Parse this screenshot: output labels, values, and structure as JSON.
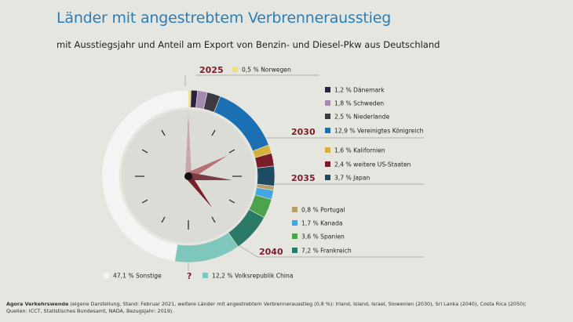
{
  "title": "Länder mit angestrebtem Verbrennerausstieg",
  "subtitle": "mit Ausstiegsjahr und Anteil am Export von Benzin- und Diesel-Pkw aus Deutschland",
  "footer": {
    "source_bold": "Agora Verkehrswende",
    "line1": " (eigene Darstellung, Stand: Februar 2021, weitere Länder mit angestrebtem Verbrennerausstieg (0,8 %): Irland, Island, Israel, Slowenien (2030), Sri Lanka (2040), Costa Rica (2050);",
    "line2": "Quellen: ICCT, Statistisches Bundesamt, NADA, Bezugsjahr: 2019)."
  },
  "years": [
    "2025",
    "2030",
    "2035",
    "2040",
    "?"
  ],
  "chart_data": {
    "type": "pie",
    "style": "donut with clock face",
    "series": [
      {
        "label": "0,5 % Norwegen",
        "value": 0.5,
        "color": "#efe07e",
        "group": "2025"
      },
      {
        "label": "1,2 % Dänemark",
        "value": 1.2,
        "color": "#2d2140",
        "group": "2030"
      },
      {
        "label": "1,8 % Schweden",
        "value": 1.8,
        "color": "#a58ab0",
        "group": "2030"
      },
      {
        "label": "2,5 % Niederlande",
        "value": 2.5,
        "color": "#3c3b42",
        "group": "2030"
      },
      {
        "label": "12,9 % Vereinigtes Königreich",
        "value": 12.9,
        "color": "#1a70b2",
        "group": "2030"
      },
      {
        "label": "1,6 % Kalifornien",
        "value": 1.6,
        "color": "#d4b13f",
        "group": "2035"
      },
      {
        "label": "2,4 % weitere US-Staaten",
        "value": 2.4,
        "color": "#7b1b26",
        "group": "2035"
      },
      {
        "label": "3,7 % Japan",
        "value": 3.7,
        "color": "#1e4a62",
        "group": "2035"
      },
      {
        "label": "0,8 % Portugal",
        "value": 0.8,
        "color": "#b7a06c",
        "group": "2040"
      },
      {
        "label": "1,7 % Kanada",
        "value": 1.7,
        "color": "#43a6de",
        "group": "2040"
      },
      {
        "label": "3,6 % Spanien",
        "value": 3.6,
        "color": "#4fa24c",
        "group": "2040"
      },
      {
        "label": "7,2 % Frankreich",
        "value": 7.2,
        "color": "#2b7a67",
        "group": "2040"
      },
      {
        "label": "12,2 % Volksrepublik China",
        "value": 12.2,
        "color": "#7fc6bd",
        "group": "?"
      },
      {
        "label": "47,1 % Sonstige",
        "value": 47.1,
        "color": "#f4f4f2",
        "group": ""
      }
    ]
  }
}
